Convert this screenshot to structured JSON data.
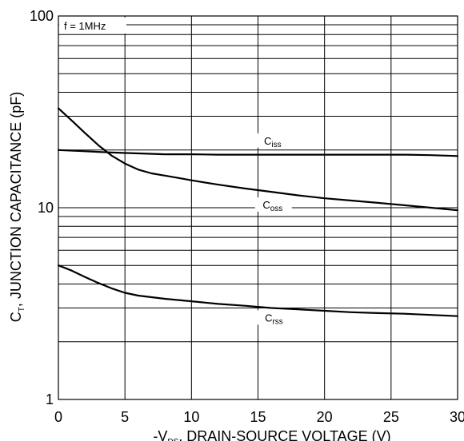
{
  "chart_data": {
    "type": "line",
    "title": "",
    "xlabel": {
      "prefix": "-V",
      "sub": "DS",
      "rest": ", DRAIN-SOURCE VOLTAGE (V)"
    },
    "ylabel": {
      "prefix": "C",
      "sub": "T",
      "rest": ", JUNCTION CAPACITANCE (pF)"
    },
    "xlim": [
      0,
      30
    ],
    "ylim": [
      1,
      100
    ],
    "yscale": "log",
    "grid": true,
    "x_ticks": [
      0,
      5,
      10,
      15,
      20,
      25,
      30
    ],
    "y_ticks": [
      1,
      10,
      100
    ],
    "annotation": "f = 1MHz",
    "series": [
      {
        "name": "iss",
        "label_main": "C",
        "label_sub": "iss",
        "x": [
          0,
          2,
          4,
          6,
          8,
          10,
          12,
          14,
          16,
          18,
          20,
          22,
          24,
          26,
          28,
          30
        ],
        "y": [
          20,
          19.7,
          19.4,
          19.2,
          19.0,
          19.0,
          18.9,
          18.9,
          18.9,
          18.9,
          18.9,
          18.9,
          18.9,
          18.9,
          18.8,
          18.6
        ]
      },
      {
        "name": "oss",
        "label_main": "C",
        "label_sub": "oss",
        "x": [
          0,
          1,
          2,
          3,
          4,
          5,
          6,
          7,
          8,
          9,
          10,
          12,
          14,
          16,
          18,
          20,
          22,
          24,
          26,
          28,
          30
        ],
        "y": [
          33,
          28.5,
          24.5,
          21.2,
          18.7,
          17.0,
          15.8,
          15.1,
          14.7,
          14.3,
          13.9,
          13.2,
          12.6,
          12.1,
          11.6,
          11.2,
          10.9,
          10.6,
          10.3,
          10.0,
          9.7
        ]
      },
      {
        "name": "rss",
        "label_main": "C",
        "label_sub": "rss",
        "x": [
          0,
          1,
          2,
          3,
          4,
          5,
          6,
          8,
          10,
          12,
          14,
          16,
          18,
          20,
          22,
          24,
          26,
          28,
          30
        ],
        "y": [
          5.0,
          4.7,
          4.35,
          4.05,
          3.8,
          3.6,
          3.48,
          3.35,
          3.25,
          3.15,
          3.08,
          3.0,
          2.95,
          2.9,
          2.85,
          2.82,
          2.8,
          2.76,
          2.72
        ]
      }
    ]
  }
}
